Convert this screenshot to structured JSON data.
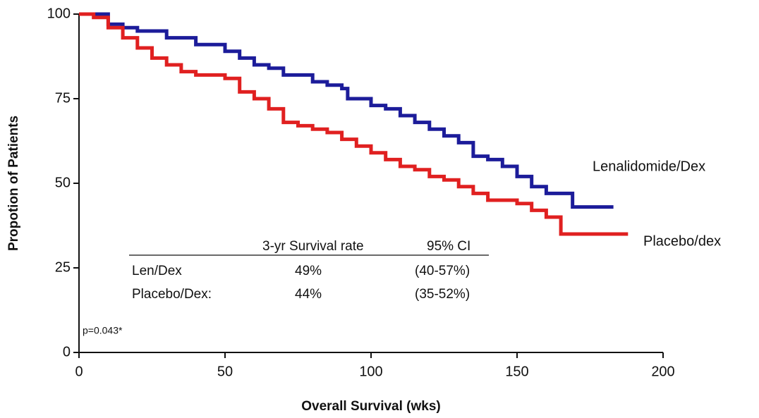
{
  "chart_data": {
    "type": "step",
    "xlabel": "Overall Survival (wks)",
    "ylabel": "Propotion of Patients",
    "xlim": [
      0,
      200
    ],
    "xticks": [
      0,
      50,
      100,
      150,
      200
    ],
    "ylim": [
      0,
      100
    ],
    "yticks": [
      0,
      25,
      50,
      75,
      100
    ],
    "grid": false,
    "series": [
      {
        "name": "Lenalidomide/Dex",
        "color": "#1c1c9a",
        "x": [
          0,
          5,
          10,
          15,
          20,
          30,
          40,
          50,
          55,
          60,
          65,
          70,
          80,
          85,
          90,
          92,
          100,
          105,
          110,
          115,
          120,
          125,
          130,
          135,
          140,
          145,
          150,
          155,
          160,
          169,
          183
        ],
        "values": [
          100,
          100,
          97,
          96,
          95,
          93,
          91,
          89,
          87,
          85,
          84,
          82,
          80,
          79,
          78,
          75,
          73,
          72,
          70,
          68,
          66,
          64,
          62,
          58,
          57,
          55,
          52,
          49,
          47,
          43,
          43
        ]
      },
      {
        "name": "Placebo/dex",
        "color": "#e02020",
        "x": [
          0,
          5,
          10,
          15,
          20,
          25,
          30,
          35,
          40,
          45,
          50,
          55,
          60,
          65,
          70,
          75,
          80,
          85,
          90,
          95,
          100,
          105,
          110,
          115,
          120,
          125,
          130,
          135,
          140,
          150,
          155,
          160,
          165,
          188
        ],
        "values": [
          100,
          99,
          96,
          93,
          90,
          87,
          85,
          83,
          82,
          82,
          81,
          77,
          75,
          72,
          68,
          67,
          66,
          65,
          63,
          61,
          59,
          57,
          55,
          54,
          52,
          51,
          49,
          47,
          45,
          44,
          42,
          40,
          35,
          35
        ]
      }
    ],
    "table": {
      "columns": [
        "3-yr Survival rate",
        "95% CI"
      ],
      "rows": [
        [
          "Len/Dex",
          "49%",
          "(40-57%)"
        ],
        [
          "Placebo/Dex:",
          "44%",
          "(35-52%)"
        ]
      ]
    },
    "annotation": "p=0.043*"
  }
}
